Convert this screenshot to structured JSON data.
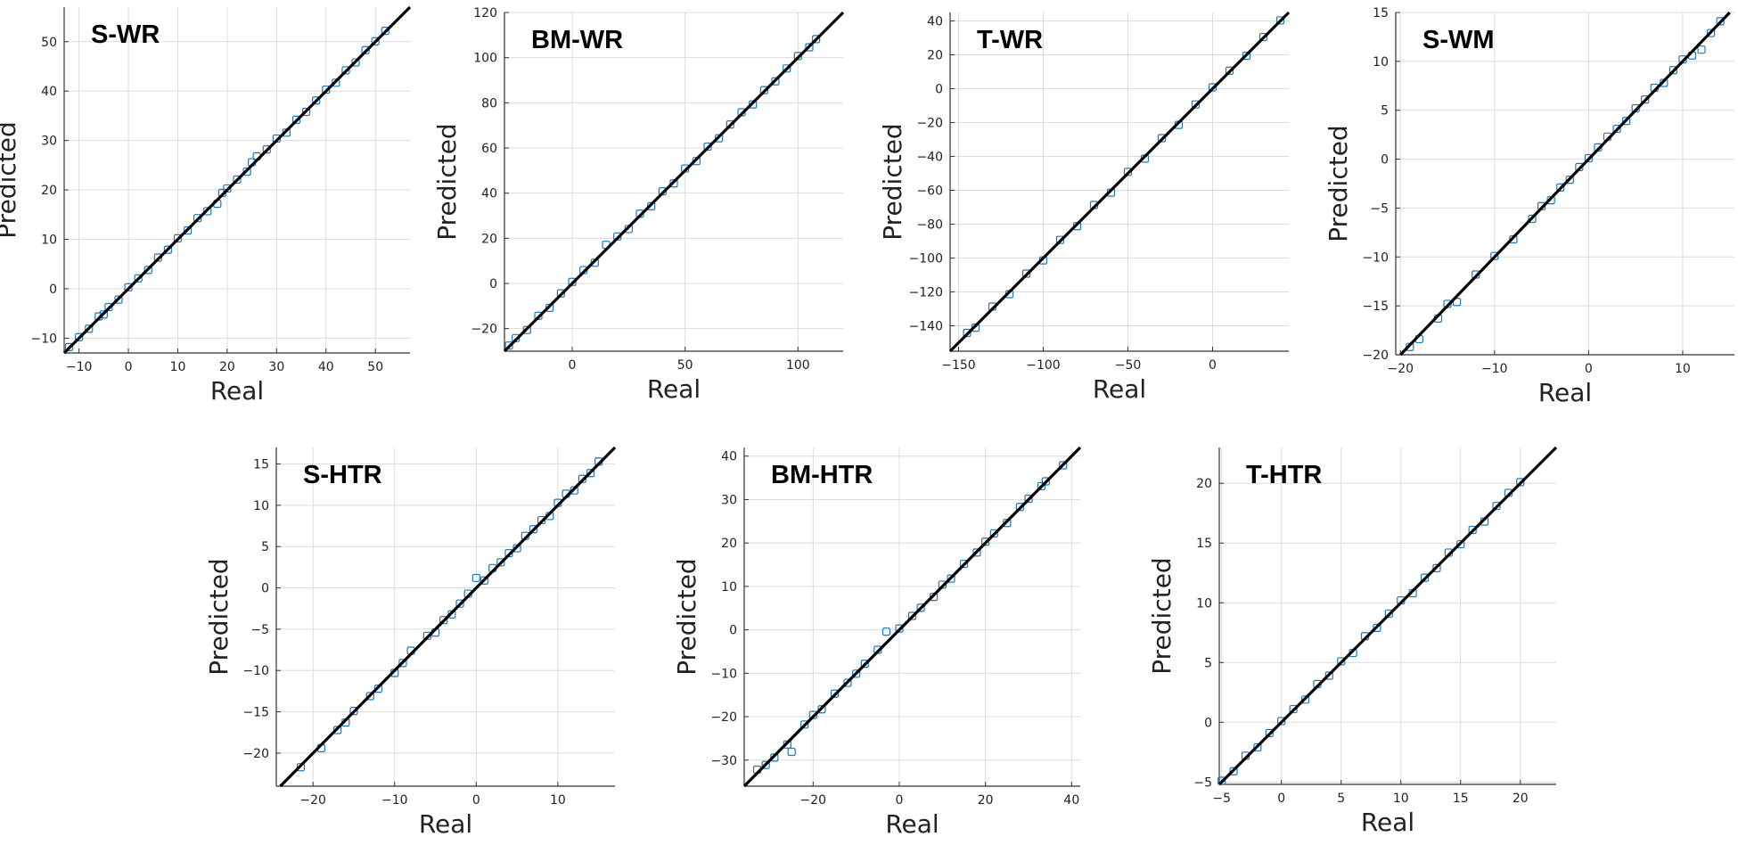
{
  "figure": {
    "marker_color": "#1f77b4",
    "line_color": "#000000",
    "marker": "open-square"
  },
  "chart_data": [
    {
      "type": "scatter",
      "title": "S-WR",
      "xlabel": "Real",
      "ylabel": "Predicted",
      "xlim": [
        -13,
        57
      ],
      "ylim": [
        -13,
        57
      ],
      "xticks": [
        -10,
        0,
        10,
        20,
        30,
        40,
        50
      ],
      "yticks": [
        -10,
        0,
        10,
        20,
        30,
        40,
        50
      ],
      "grid": true,
      "reference_line": "y = x",
      "x": [
        -12,
        -10,
        -8,
        -6,
        -5,
        -4,
        -2,
        0,
        2,
        4,
        6,
        8,
        10,
        12,
        14,
        16,
        18,
        19,
        20,
        22,
        24,
        25,
        26,
        28,
        30,
        32,
        34,
        36,
        38,
        40,
        42,
        44,
        46,
        48,
        50,
        52
      ],
      "y": [
        -11.8,
        -9.8,
        -8.1,
        -5.6,
        -5.2,
        -3.7,
        -2.2,
        0.3,
        2.1,
        3.8,
        6.3,
        7.9,
        10.2,
        11.8,
        14.3,
        15.7,
        17.2,
        19.4,
        20.3,
        22.1,
        23.7,
        25.6,
        26.8,
        28.2,
        30.4,
        31.6,
        34.2,
        35.8,
        38.1,
        40.3,
        41.7,
        44.2,
        45.8,
        48.3,
        50.1,
        52.2
      ]
    },
    {
      "type": "scatter",
      "title": "BM-WR",
      "xlabel": "Real",
      "ylabel": "Predicted",
      "xlim": [
        -30,
        120
      ],
      "ylim": [
        -30,
        120
      ],
      "xticks": [
        0,
        50,
        100
      ],
      "yticks": [
        -20,
        0,
        20,
        40,
        60,
        80,
        100,
        120
      ],
      "grid": true,
      "reference_line": "y = x",
      "x": [
        -28,
        -25,
        -20,
        -15,
        -10,
        -5,
        0,
        5,
        10,
        15,
        20,
        25,
        30,
        35,
        40,
        45,
        50,
        55,
        60,
        65,
        70,
        75,
        80,
        85,
        90,
        95,
        100,
        105,
        108
      ],
      "y": [
        -27.5,
        -24.2,
        -20.6,
        -14.3,
        -10.8,
        -4.4,
        0.7,
        5.9,
        9.2,
        17.1,
        20.8,
        24.1,
        30.9,
        34.2,
        40.8,
        44.3,
        50.9,
        54.2,
        60.6,
        64.3,
        70.4,
        75.8,
        79.3,
        85.6,
        89.5,
        95.2,
        100.7,
        104.6,
        108.2
      ]
    },
    {
      "type": "scatter",
      "title": "T-WR",
      "xlabel": "Real",
      "ylabel": "Predicted",
      "xlim": [
        -155,
        45
      ],
      "ylim": [
        -155,
        45
      ],
      "xticks": [
        -150,
        -100,
        -50,
        0
      ],
      "yticks": [
        -140,
        -120,
        -100,
        -80,
        -60,
        -40,
        -20,
        0,
        20,
        40
      ],
      "grid": true,
      "reference_line": "y = x",
      "x": [
        -145,
        -140,
        -130,
        -120,
        -110,
        -100,
        -90,
        -80,
        -70,
        -60,
        -50,
        -40,
        -30,
        -20,
        -10,
        0,
        10,
        20,
        30,
        40
      ],
      "y": [
        -144.2,
        -141.1,
        -128.6,
        -121.3,
        -109.2,
        -101.4,
        -89.3,
        -81.2,
        -68.7,
        -61.4,
        -49.1,
        -41.3,
        -29.2,
        -21.4,
        -9.3,
        0.8,
        10.6,
        19.4,
        30.5,
        40.3
      ]
    },
    {
      "type": "scatter",
      "title": "S-WM",
      "xlabel": "Real",
      "ylabel": "Predicted",
      "xlim": [
        -20.5,
        15.5
      ],
      "ylim": [
        -20,
        15
      ],
      "xticks": [
        -20,
        -10,
        0,
        10
      ],
      "yticks": [
        -20,
        -15,
        -10,
        -5,
        0,
        5,
        10,
        15
      ],
      "grid": true,
      "reference_line": "y = x",
      "x": [
        -19,
        -18,
        -16,
        -15,
        -14,
        -12,
        -10,
        -8,
        -6,
        -5,
        -4,
        -3,
        -2,
        -1,
        0,
        1,
        2,
        3,
        4,
        5,
        6,
        7,
        8,
        9,
        10,
        11,
        12,
        13,
        14
      ],
      "y": [
        -19.2,
        -18.4,
        -16.3,
        -14.8,
        -14.6,
        -11.8,
        -9.9,
        -8.2,
        -6.1,
        -4.8,
        -4.2,
        -2.9,
        -2.1,
        -0.8,
        0.1,
        1.2,
        2.3,
        3.1,
        3.9,
        5.2,
        6.1,
        7.3,
        7.8,
        9.1,
        10.2,
        10.6,
        11.2,
        12.9,
        14.1
      ]
    },
    {
      "type": "scatter",
      "title": "S-HTR",
      "xlabel": "Real",
      "ylabel": "Predicted",
      "xlim": [
        -24.5,
        17
      ],
      "ylim": [
        -24,
        17
      ],
      "xticks": [
        -20,
        -10,
        0,
        10
      ],
      "yticks": [
        -20,
        -15,
        -10,
        -5,
        0,
        5,
        10,
        15
      ],
      "grid": true,
      "reference_line": "y = x",
      "x": [
        -21.5,
        -19,
        -17,
        -16,
        -15,
        -13,
        -12,
        -10,
        -9,
        -8,
        -6,
        -5,
        -4,
        -3,
        -2,
        -1,
        0,
        1,
        2,
        3,
        4,
        5,
        6,
        7,
        8,
        9,
        10,
        11,
        12,
        13,
        14,
        15
      ],
      "y": [
        -21.7,
        -19.4,
        -17.2,
        -16.3,
        -14.9,
        -13.1,
        -12.2,
        -10.3,
        -9.1,
        -7.6,
        -5.8,
        -5.4,
        -3.9,
        -3.2,
        -1.9,
        -0.7,
        1.2,
        0.9,
        2.4,
        3.1,
        4.2,
        4.8,
        6.3,
        7.1,
        8.2,
        8.7,
        10.3,
        11.4,
        11.8,
        13.2,
        13.9,
        15.3
      ]
    },
    {
      "type": "scatter",
      "title": "BM-HTR",
      "xlabel": "Real",
      "ylabel": "Predicted",
      "xlim": [
        -36,
        42
      ],
      "ylim": [
        -36,
        42
      ],
      "xticks": [
        -20,
        0,
        20,
        40
      ],
      "yticks": [
        -30,
        -20,
        -10,
        0,
        10,
        20,
        30,
        40
      ],
      "grid": true,
      "reference_line": "y = x",
      "x": [
        -33,
        -31,
        -29,
        -26,
        -25,
        -22,
        -20,
        -18,
        -15,
        -12,
        -10,
        -8,
        -5,
        -3,
        0,
        3,
        5,
        8,
        10,
        12,
        15,
        18,
        20,
        22,
        25,
        28,
        30,
        33,
        34,
        38
      ],
      "y": [
        -32.2,
        -31.1,
        -29.4,
        -26.4,
        -28.1,
        -21.8,
        -19.6,
        -18.3,
        -14.7,
        -12.2,
        -10.1,
        -7.8,
        -4.6,
        -0.4,
        0.3,
        3.2,
        5.1,
        7.6,
        10.4,
        11.8,
        15.2,
        17.8,
        20.3,
        22.2,
        24.6,
        28.3,
        30.2,
        33.1,
        34.2,
        37.9
      ]
    },
    {
      "type": "scatter",
      "title": "T-HTR",
      "xlabel": "Real",
      "ylabel": "Predicted",
      "xlim": [
        -5.2,
        23
      ],
      "ylim": [
        -5.2,
        23
      ],
      "xticks": [
        -5,
        0,
        5,
        10,
        15,
        20
      ],
      "yticks": [
        -5,
        0,
        5,
        10,
        15,
        20
      ],
      "grid": true,
      "reference_line": "y = x",
      "x": [
        -5,
        -4,
        -3,
        -2,
        -1,
        0,
        1,
        2,
        3,
        4,
        5,
        6,
        7,
        8,
        9,
        10,
        11,
        12,
        13,
        14,
        15,
        16,
        17,
        18,
        19,
        20
      ],
      "y": [
        -4.9,
        -4.1,
        -2.8,
        -2.1,
        -0.9,
        0.1,
        1.1,
        1.9,
        3.2,
        3.9,
        5.1,
        5.8,
        7.2,
        7.9,
        9.1,
        10.2,
        10.8,
        12.1,
        12.9,
        14.2,
        14.9,
        16.1,
        16.8,
        18.1,
        19.2,
        20.1
      ]
    }
  ]
}
